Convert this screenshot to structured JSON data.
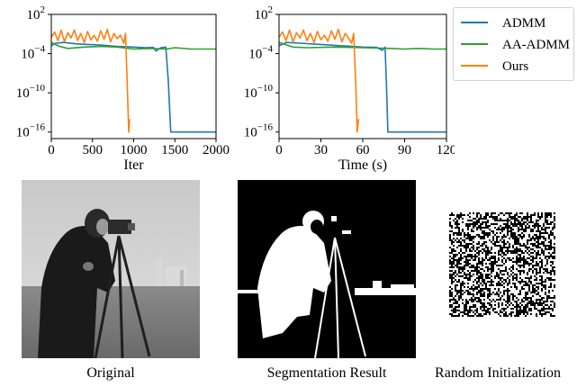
{
  "chart_data": [
    {
      "type": "line",
      "xlabel": "Iter",
      "ylabel": "",
      "xlim": [
        0,
        2000
      ],
      "ylim_exponent": [
        -17,
        2
      ],
      "yscale": "log",
      "xticks": [
        "0",
        "500",
        "1000",
        "1500",
        "2000"
      ],
      "xtick_values": [
        0,
        500,
        1000,
        1500,
        2000
      ],
      "yticks": [
        {
          "base": "10",
          "exp": "2",
          "value": 2
        },
        {
          "base": "10",
          "exp": "−4",
          "value": -4
        },
        {
          "base": "10",
          "exp": "−10",
          "value": -10
        },
        {
          "base": "10",
          "exp": "−16",
          "value": -16
        }
      ],
      "series": [
        {
          "name": "ADMM",
          "color": "#1f77b4",
          "points": [
            [
              0,
              -2.8
            ],
            [
              50,
              -2.4
            ],
            [
              150,
              -2.3
            ],
            [
              300,
              -2.5
            ],
            [
              450,
              -2.6
            ],
            [
              600,
              -2.7
            ],
            [
              800,
              -2.9
            ],
            [
              1000,
              -3.0
            ],
            [
              1150,
              -3.1
            ],
            [
              1240,
              -3.05
            ],
            [
              1270,
              -3.6
            ],
            [
              1330,
              -3.1
            ],
            [
              1390,
              -3.0
            ],
            [
              1420,
              -8.0
            ],
            [
              1450,
              -16.0
            ],
            [
              1700,
              -16.0
            ],
            [
              2000,
              -16.0
            ]
          ]
        },
        {
          "name": "AA-ADMM",
          "color": "#2ca02c",
          "points": [
            [
              0,
              -2.3
            ],
            [
              100,
              -2.9
            ],
            [
              200,
              -3.2
            ],
            [
              400,
              -3.0
            ],
            [
              600,
              -2.9
            ],
            [
              800,
              -3.0
            ],
            [
              1000,
              -3.3
            ],
            [
              1200,
              -3.2
            ],
            [
              1400,
              -3.3
            ],
            [
              1500,
              -3.1
            ],
            [
              1700,
              -3.3
            ],
            [
              1850,
              -3.3
            ],
            [
              2000,
              -3.3
            ]
          ]
        },
        {
          "name": "Ours",
          "color": "#ff7f0e",
          "points": [
            [
              0,
              -1.5
            ],
            [
              40,
              -0.7
            ],
            [
              80,
              -2.0
            ],
            [
              120,
              -0.4
            ],
            [
              160,
              -2.2
            ],
            [
              200,
              -0.8
            ],
            [
              240,
              -1.6
            ],
            [
              280,
              -0.4
            ],
            [
              320,
              -2.0
            ],
            [
              360,
              -0.9
            ],
            [
              400,
              -2.3
            ],
            [
              440,
              -0.6
            ],
            [
              480,
              -1.9
            ],
            [
              520,
              -1.2
            ],
            [
              560,
              -2.1
            ],
            [
              600,
              -0.5
            ],
            [
              640,
              -1.8
            ],
            [
              680,
              -0.3
            ],
            [
              720,
              -2.2
            ],
            [
              760,
              -0.9
            ],
            [
              800,
              -1.7
            ],
            [
              840,
              -1.2
            ],
            [
              880,
              -2.4
            ],
            [
              900,
              -0.9
            ],
            [
              920,
              -8.0
            ],
            [
              940,
              -16.0
            ],
            [
              950,
              -14.0
            ]
          ]
        }
      ]
    },
    {
      "type": "line",
      "xlabel": "Time (s)",
      "ylabel": "",
      "xlim": [
        0,
        120
      ],
      "ylim_exponent": [
        -17,
        2
      ],
      "yscale": "log",
      "xticks": [
        "0",
        "30",
        "60",
        "90",
        "120"
      ],
      "xtick_values": [
        0,
        30,
        60,
        90,
        120
      ],
      "yticks": [
        {
          "base": "10",
          "exp": "2",
          "value": 2
        },
        {
          "base": "10",
          "exp": "−4",
          "value": -4
        },
        {
          "base": "10",
          "exp": "−10",
          "value": -10
        },
        {
          "base": "10",
          "exp": "−16",
          "value": -16
        }
      ],
      "series": [
        {
          "name": "ADMM",
          "color": "#1f77b4",
          "points": [
            [
              0,
              -2.8
            ],
            [
              5,
              -2.3
            ],
            [
              15,
              -2.4
            ],
            [
              30,
              -2.6
            ],
            [
              45,
              -2.8
            ],
            [
              60,
              -3.0
            ],
            [
              70,
              -3.05
            ],
            [
              74,
              -3.5
            ],
            [
              76,
              -3.0
            ],
            [
              77,
              -9.0
            ],
            [
              78,
              -16.0
            ],
            [
              100,
              -16.0
            ],
            [
              120,
              -16.0
            ]
          ]
        },
        {
          "name": "AA-ADMM",
          "color": "#2ca02c",
          "points": [
            [
              0,
              -2.3
            ],
            [
              10,
              -3.0
            ],
            [
              20,
              -3.1
            ],
            [
              40,
              -3.0
            ],
            [
              60,
              -3.1
            ],
            [
              80,
              -3.2
            ],
            [
              90,
              -3.3
            ],
            [
              100,
              -3.2
            ],
            [
              110,
              -3.3
            ],
            [
              120,
              -3.3
            ]
          ]
        },
        {
          "name": "Ours",
          "color": "#ff7f0e",
          "points": [
            [
              0,
              -1.5
            ],
            [
              2.5,
              -0.7
            ],
            [
              5,
              -2.0
            ],
            [
              7.5,
              -0.4
            ],
            [
              10,
              -2.2
            ],
            [
              12.5,
              -0.8
            ],
            [
              15,
              -1.6
            ],
            [
              17.5,
              -0.4
            ],
            [
              20,
              -2.0
            ],
            [
              22.5,
              -0.9
            ],
            [
              25,
              -2.3
            ],
            [
              27.5,
              -0.6
            ],
            [
              30,
              -1.9
            ],
            [
              32.5,
              -1.2
            ],
            [
              35,
              -2.1
            ],
            [
              37.5,
              -0.5
            ],
            [
              40,
              -1.8
            ],
            [
              42.5,
              -0.3
            ],
            [
              45,
              -2.2
            ],
            [
              47.5,
              -0.9
            ],
            [
              50,
              -1.7
            ],
            [
              52,
              -2.4
            ],
            [
              53.5,
              -0.9
            ],
            [
              55,
              -9.0
            ],
            [
              56,
              -16.0
            ],
            [
              57,
              -14.0
            ]
          ]
        }
      ]
    }
  ],
  "legend": {
    "position": "top-right",
    "items": [
      {
        "label": "ADMM",
        "color": "#1f77b4"
      },
      {
        "label": "AA-ADMM",
        "color": "#2ca02c"
      },
      {
        "label": "Ours",
        "color": "#ff7f0e"
      }
    ]
  },
  "images": [
    {
      "name": "original",
      "caption": "Original"
    },
    {
      "name": "segmentation-result",
      "caption": "Segmentation Result"
    },
    {
      "name": "random-initialization",
      "caption": "Random Initialization"
    }
  ]
}
